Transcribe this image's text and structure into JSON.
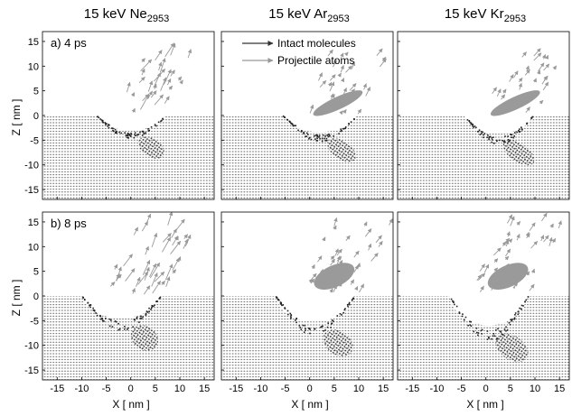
{
  "chart_data": {
    "type": "vector-field",
    "grid": {
      "rows": 2,
      "cols": 3
    },
    "columns": [
      {
        "prefix": "15 keV Ne",
        "subscript": "2953"
      },
      {
        "prefix": "15 keV Ar",
        "subscript": "2953"
      },
      {
        "prefix": "15 keV Kr",
        "subscript": "2953"
      }
    ],
    "rows": [
      {
        "label": "a) 4 ps"
      },
      {
        "label": "b) 8 ps"
      }
    ],
    "xlabel": "X [ nm ]",
    "ylabel": "Z [ nm ]",
    "xlim": [
      -18,
      17
    ],
    "ylim": [
      -17,
      17
    ],
    "xticks": [
      -15,
      -10,
      -5,
      0,
      5,
      10,
      15
    ],
    "yticks": [
      -15,
      -10,
      -5,
      0,
      5,
      10,
      15
    ],
    "surface_z": 0,
    "legend": {
      "position": "top-left of middle top panel",
      "entries": [
        {
          "name": "Intact molecules",
          "color": "#333333"
        },
        {
          "name": "Projectile atoms",
          "color": "#999999"
        }
      ]
    },
    "craters": [
      {
        "panel": "Ne 4 ps",
        "center_x": 0,
        "width_nm": 8,
        "depth_nm": 4
      },
      {
        "panel": "Ar 4 ps",
        "center_x": 2,
        "width_nm": 9,
        "depth_nm": 4.5
      },
      {
        "panel": "Kr 4 ps",
        "center_x": 2.5,
        "width_nm": 8,
        "depth_nm": 5
      },
      {
        "panel": "Ne 8 ps",
        "center_x": -2,
        "width_nm": 10,
        "depth_nm": 6
      },
      {
        "panel": "Ar 8 ps",
        "center_x": 1,
        "width_nm": 10,
        "depth_nm": 7
      },
      {
        "panel": "Kr 8 ps",
        "center_x": 0.5,
        "width_nm": 10,
        "depth_nm": 8
      }
    ]
  }
}
